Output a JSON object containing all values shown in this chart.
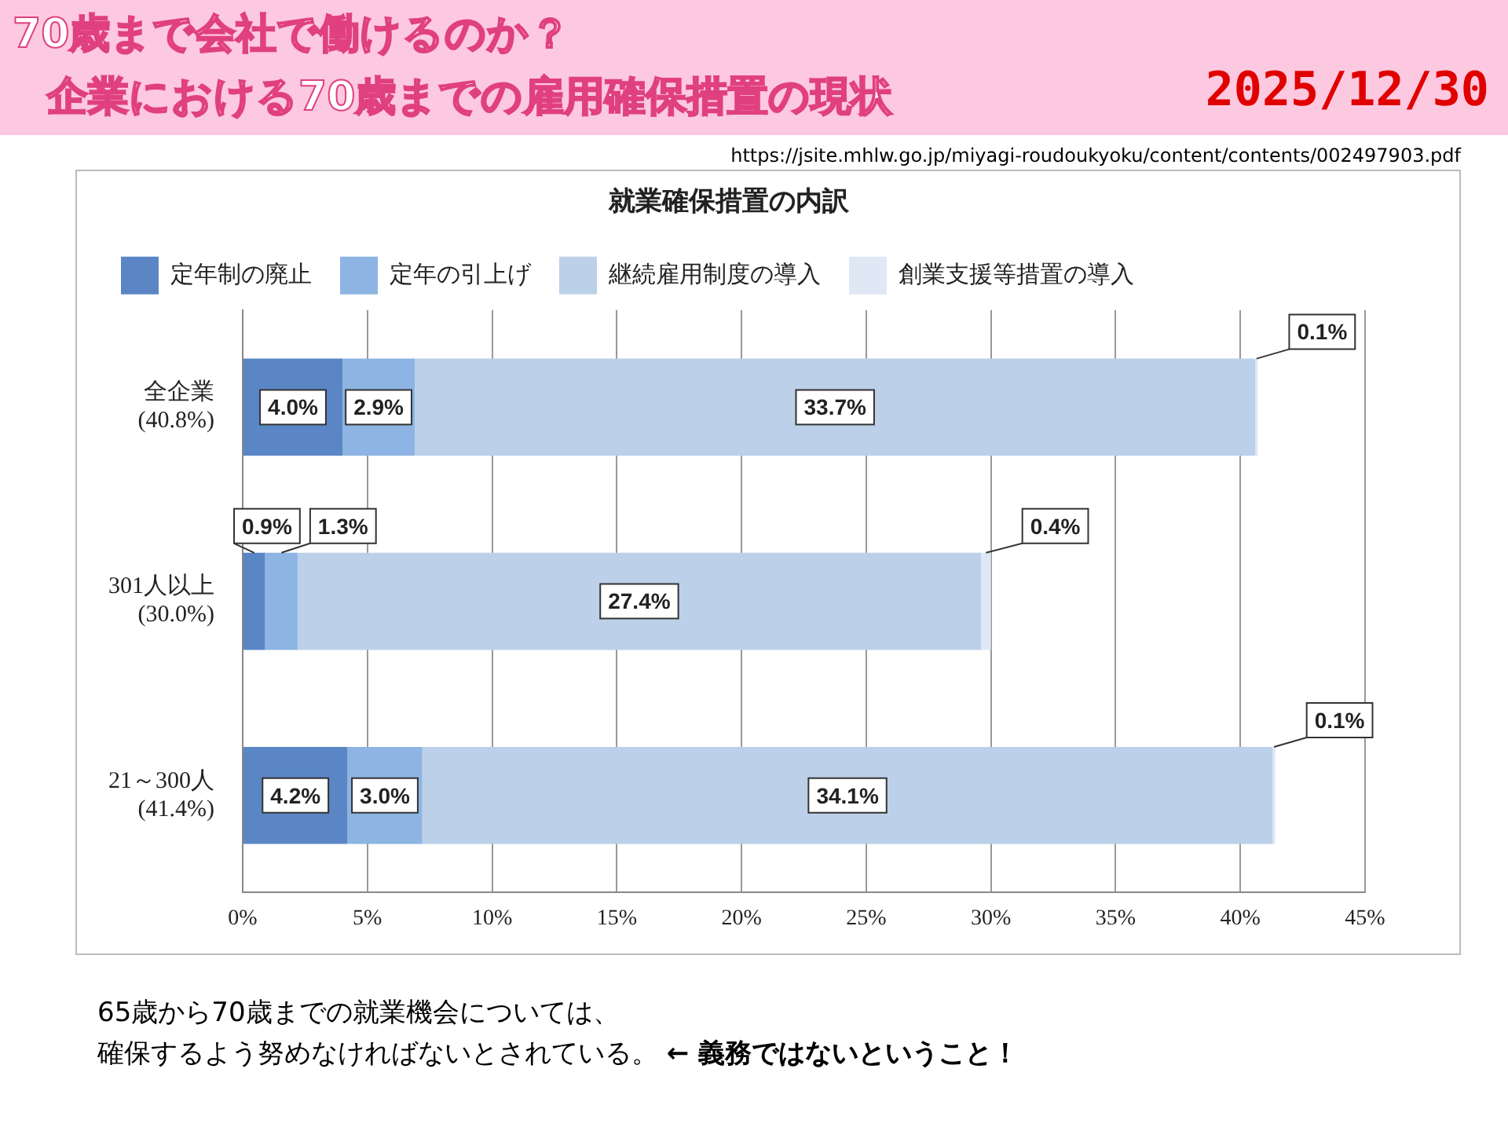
{
  "chart_data": {
    "type": "bar",
    "orientation": "horizontal",
    "stacked": true,
    "title": "就業確保措置の内訳",
    "categories": [
      "全企業\n(40.8%)",
      "301人以上\n(30.0%)",
      "21～300人\n(41.4%)"
    ],
    "series": [
      {
        "name": "定年制の廃止",
        "color": "#5a86c5",
        "values": [
          4.0,
          0.9,
          4.2
        ],
        "value_labels": [
          "4.0%",
          "0.9%",
          "4.2%"
        ]
      },
      {
        "name": "定年の引上げ",
        "color": "#8db4e2",
        "values": [
          2.9,
          1.3,
          3.0
        ],
        "value_labels": [
          "2.9%",
          "1.3%",
          "3.0%"
        ]
      },
      {
        "name": "継続雇用制度の導入",
        "color": "#bcd0e9",
        "values": [
          33.7,
          27.4,
          34.1
        ],
        "value_labels": [
          "33.7%",
          "27.4%",
          "34.1%"
        ]
      },
      {
        "name": "創業支援等措置の導入",
        "color": "#dfe8f4",
        "values": [
          0.1,
          0.4,
          0.1
        ],
        "value_labels": [
          "0.1%",
          "0.4%",
          "0.1%"
        ]
      }
    ],
    "xlim": [
      0,
      45
    ],
    "xticks": [
      {
        "value": 0,
        "label": "0%"
      },
      {
        "value": 5,
        "label": "5%"
      },
      {
        "value": 10,
        "label": "10%"
      },
      {
        "value": 15,
        "label": "15%"
      },
      {
        "value": 20,
        "label": "20%"
      },
      {
        "value": 25,
        "label": "25%"
      },
      {
        "value": 30,
        "label": "30%"
      },
      {
        "value": 35,
        "label": "35%"
      },
      {
        "value": 40,
        "label": "40%"
      },
      {
        "value": 45,
        "label": "45%"
      }
    ],
    "grid": "x",
    "legend": "top",
    "annotations": [
      "70歳まで会社で働けるのか？",
      "企業における70歳までの雇用確保措置の現状",
      "2025/12/30",
      "https://jsite.mhlw.go.jp/miyagi-roudoukyoku/content/contents/002497903.pdf",
      "65歳から70歳までの就業機会については、",
      "確保するよう努めなければないとされている。",
      "← 義務ではないということ！"
    ]
  }
}
